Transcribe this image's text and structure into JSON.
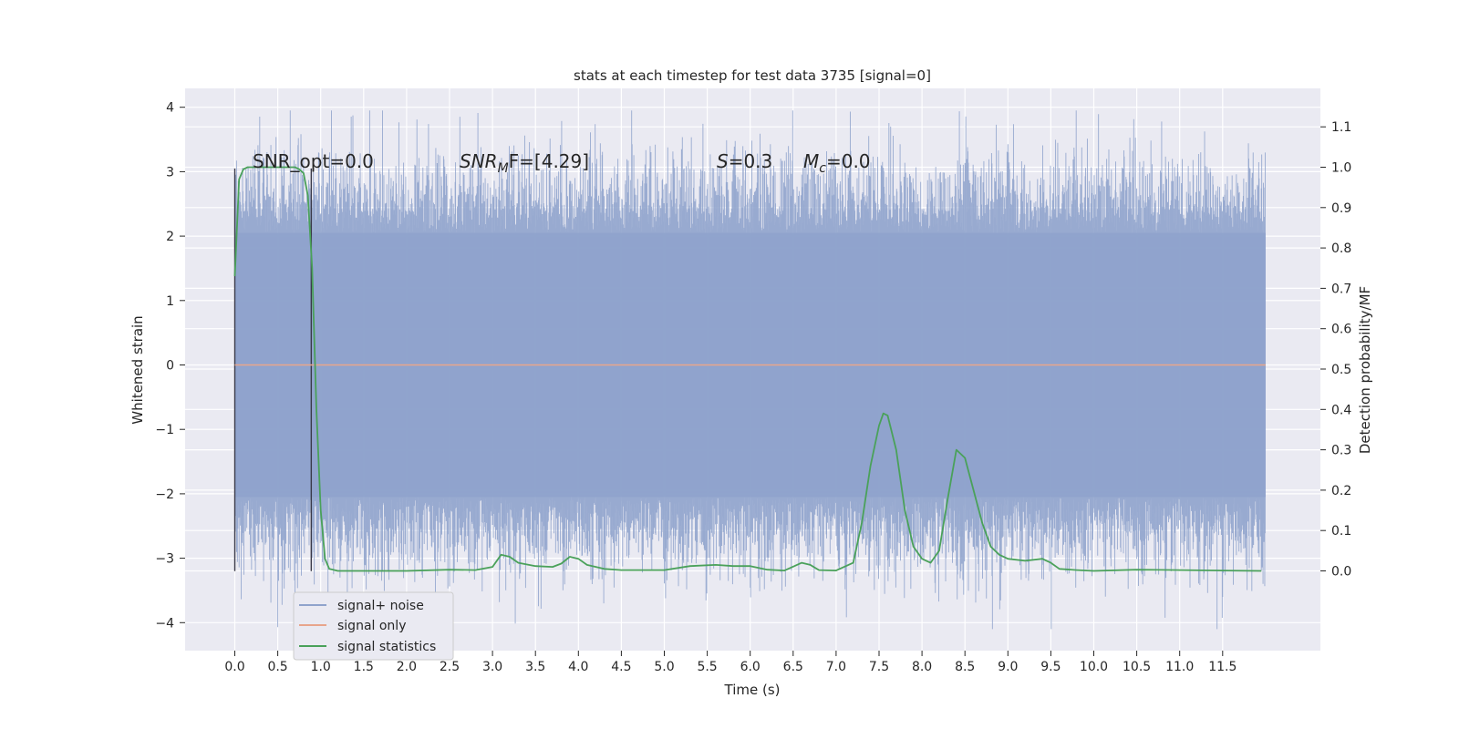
{
  "chart_data": {
    "type": "line",
    "title": "stats at each timestep for test data 3735 [signal=0]",
    "xlabel": "Time (s)",
    "ylabel_left": "Whitened strain",
    "ylabel_right": "Detection probability/MF",
    "xlim": [
      -0.58,
      12.6
    ],
    "ylim_left": [
      -4.45,
      4.3
    ],
    "ylim_right": [
      -0.2,
      1.2
    ],
    "x_ticks": [
      "0.0",
      "0.5",
      "1.0",
      "1.5",
      "2.0",
      "2.5",
      "3.0",
      "3.5",
      "4.0",
      "4.5",
      "5.0",
      "5.5",
      "6.0",
      "6.5",
      "7.0",
      "7.5",
      "8.0",
      "8.5",
      "9.0",
      "9.5",
      "10.0",
      "10.5",
      "11.0",
      "11.5"
    ],
    "y_left_ticks": [
      "4",
      "3",
      "2",
      "1",
      "0",
      "−1",
      "−2",
      "−3",
      "−4"
    ],
    "y_right_ticks": [
      "1.1",
      "1.0",
      "0.9",
      "0.8",
      "0.7",
      "0.6",
      "0.5",
      "0.4",
      "0.3",
      "0.2",
      "0.1",
      "0.0"
    ],
    "grid": true,
    "legend_position": "lower-left",
    "annotations": {
      "snr_opt": "SNR_opt=0.0",
      "snr_mf_main": "SNR",
      "snr_mf_sub": "M",
      "snr_mf_rest": "F=[4.29]",
      "s_main": "S",
      "s_rest": "=0.3",
      "mc_main": "M",
      "mc_sub": "c",
      "mc_rest": "=0.0"
    },
    "vertical_markers": [
      0.0,
      0.89
    ],
    "series": [
      {
        "name": "signal+ noise",
        "color": "#8fa3cc",
        "description_values": {
          "x_start": 0.0,
          "x_end": 12.0,
          "typical_range": [
            -2.3,
            2.3
          ],
          "extremes": [
            -4.1,
            3.95
          ]
        }
      },
      {
        "name": "signal only",
        "color": "#e8a58c",
        "x": [
          0.0,
          12.0
        ],
        "y": [
          0.0,
          0.0
        ]
      },
      {
        "name": "signal statistics",
        "color": "#4aa15a",
        "axis": "right",
        "x": [
          0.0,
          0.05,
          0.1,
          0.15,
          0.2,
          0.3,
          0.4,
          0.5,
          0.6,
          0.7,
          0.75,
          0.8,
          0.85,
          0.9,
          0.95,
          1.0,
          1.05,
          1.1,
          1.2,
          1.5,
          2.0,
          2.5,
          2.8,
          3.0,
          3.1,
          3.2,
          3.3,
          3.5,
          3.7,
          3.8,
          3.9,
          4.0,
          4.1,
          4.3,
          4.5,
          5.0,
          5.3,
          5.6,
          5.8,
          6.0,
          6.2,
          6.4,
          6.6,
          6.7,
          6.8,
          7.0,
          7.2,
          7.3,
          7.4,
          7.5,
          7.55,
          7.6,
          7.7,
          7.8,
          7.9,
          8.0,
          8.1,
          8.2,
          8.3,
          8.4,
          8.5,
          8.6,
          8.7,
          8.8,
          8.9,
          9.0,
          9.2,
          9.4,
          9.5,
          9.6,
          9.8,
          10.0,
          10.5,
          11.0,
          11.5,
          11.95
        ],
        "y": [
          0.73,
          0.97,
          0.995,
          1.0,
          1.0,
          1.0,
          1.0,
          1.0,
          1.0,
          1.0,
          0.995,
          0.985,
          0.93,
          0.75,
          0.4,
          0.15,
          0.03,
          0.005,
          0.0,
          0.0,
          0.0,
          0.003,
          0.002,
          0.01,
          0.04,
          0.035,
          0.02,
          0.012,
          0.01,
          0.018,
          0.035,
          0.03,
          0.015,
          0.005,
          0.002,
          0.002,
          0.012,
          0.015,
          0.012,
          0.012,
          0.003,
          0.001,
          0.02,
          0.015,
          0.002,
          0.001,
          0.02,
          0.12,
          0.26,
          0.36,
          0.39,
          0.385,
          0.3,
          0.15,
          0.06,
          0.03,
          0.02,
          0.05,
          0.18,
          0.3,
          0.28,
          0.2,
          0.12,
          0.06,
          0.04,
          0.03,
          0.025,
          0.03,
          0.02,
          0.005,
          0.002,
          0.0,
          0.003,
          0.002,
          0.001,
          0.0
        ]
      }
    ]
  }
}
